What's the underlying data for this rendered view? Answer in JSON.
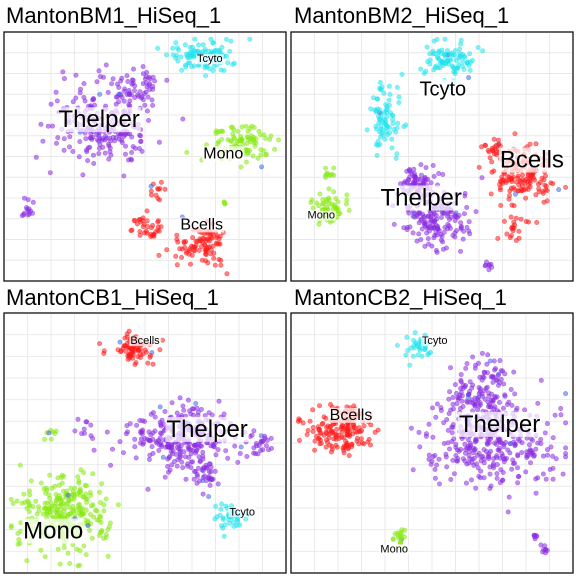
{
  "colors": {
    "Thelper": "#8a2be2",
    "Tcyto": "#1fe3ee",
    "Bcells": "#ff1a1a",
    "Mono": "#86ea11",
    "other": "#4169e1"
  },
  "chart_data": [
    {
      "type": "scatter",
      "title": "MantonBM1_HiSeq_1",
      "xlabel": "",
      "ylabel": "",
      "grid": true,
      "xlim": [
        0,
        100
      ],
      "ylim": [
        0,
        100
      ],
      "labels": [
        {
          "text": "Thelper",
          "x": 33,
          "y": 65,
          "size": "large"
        },
        {
          "text": "Tcyto",
          "x": 74,
          "y": 91,
          "size": "small"
        },
        {
          "text": "Mono",
          "x": 79,
          "y": 51,
          "size": "medium"
        },
        {
          "text": "Bcells",
          "x": 71,
          "y": 21,
          "size": "medium"
        }
      ],
      "clusters": [
        {
          "type": "Thelper",
          "cx": 34,
          "cy": 65,
          "sx": 10,
          "sy": 9,
          "n": 230
        },
        {
          "type": "Thelper",
          "cx": 47,
          "cy": 79,
          "sx": 5,
          "sy": 4,
          "n": 45
        },
        {
          "type": "Tcyto",
          "cx": 70,
          "cy": 92,
          "sx": 7,
          "sy": 3.5,
          "n": 95
        },
        {
          "type": "Mono",
          "cx": 85,
          "cy": 56,
          "sx": 6,
          "sy": 3.5,
          "n": 90
        },
        {
          "type": "Bcells",
          "cx": 71,
          "cy": 13,
          "sx": 5,
          "sy": 4.5,
          "n": 95
        },
        {
          "type": "Bcells",
          "cx": 51,
          "cy": 20,
          "sx": 3,
          "sy": 2.5,
          "n": 35
        },
        {
          "type": "Bcells",
          "cx": 54,
          "cy": 35,
          "sx": 2,
          "sy": 2,
          "n": 12
        },
        {
          "type": "Thelper",
          "cx": 7,
          "cy": 28,
          "sx": 1.2,
          "sy": 2.5,
          "n": 14
        },
        {
          "type": "Mono",
          "cx": 80,
          "cy": 31,
          "sx": 0.8,
          "sy": 0.8,
          "n": 4
        }
      ]
    },
    {
      "type": "scatter",
      "title": "MantonBM2_HiSeq_1",
      "xlabel": "",
      "ylabel": "",
      "grid": true,
      "xlim": [
        0,
        100
      ],
      "ylim": [
        0,
        100
      ],
      "labels": [
        {
          "text": "Tcyto",
          "x": 54,
          "y": 78,
          "size": "medium-large"
        },
        {
          "text": "Bcells",
          "x": 87,
          "y": 48,
          "size": "large"
        },
        {
          "text": "Thelper",
          "x": 46,
          "y": 32,
          "size": "large"
        },
        {
          "text": "Mono",
          "x": 9,
          "y": 25,
          "size": "small"
        }
      ],
      "clusters": [
        {
          "type": "Tcyto",
          "cx": 56,
          "cy": 91,
          "sx": 5,
          "sy": 3.5,
          "n": 90
        },
        {
          "type": "Tcyto",
          "cx": 33,
          "cy": 66,
          "sx": 3,
          "sy": 7,
          "n": 80
        },
        {
          "type": "Bcells",
          "cx": 83,
          "cy": 42,
          "sx": 6,
          "sy": 6,
          "n": 150
        },
        {
          "type": "Bcells",
          "cx": 73,
          "cy": 52,
          "sx": 2,
          "sy": 2,
          "n": 20
        },
        {
          "type": "Bcells",
          "cx": 80,
          "cy": 20,
          "sx": 3,
          "sy": 3,
          "n": 20
        },
        {
          "type": "Thelper",
          "cx": 52,
          "cy": 24,
          "sx": 6,
          "sy": 6,
          "n": 170
        },
        {
          "type": "Thelper",
          "cx": 44,
          "cy": 40,
          "sx": 3,
          "sy": 3,
          "n": 60
        },
        {
          "type": "Mono",
          "cx": 12,
          "cy": 28,
          "sx": 3,
          "sy": 4,
          "n": 55
        },
        {
          "type": "Mono",
          "cx": 12,
          "cy": 44,
          "sx": 1,
          "sy": 2,
          "n": 10
        },
        {
          "type": "Thelper",
          "cx": 71,
          "cy": 4,
          "sx": 0.8,
          "sy": 1.5,
          "n": 8
        }
      ]
    },
    {
      "type": "scatter",
      "title": "MantonCB1_HiSeq_1",
      "xlabel": "",
      "ylabel": "",
      "grid": true,
      "xlim": [
        0,
        100
      ],
      "ylim": [
        0,
        100
      ],
      "labels": [
        {
          "text": "Bcells",
          "x": 50,
          "y": 91,
          "size": "small"
        },
        {
          "text": "Thelper",
          "x": 73,
          "y": 55,
          "size": "large"
        },
        {
          "text": "Mono",
          "x": 16,
          "y": 14,
          "size": "large"
        },
        {
          "text": "Tcyto",
          "x": 86,
          "y": 22,
          "size": "small"
        }
      ],
      "clusters": [
        {
          "type": "Bcells",
          "cx": 46,
          "cy": 88,
          "sx": 4,
          "sy": 3,
          "n": 80
        },
        {
          "type": "Thelper",
          "cx": 63,
          "cy": 52,
          "sx": 9,
          "sy": 7,
          "n": 280
        },
        {
          "type": "Thelper",
          "cx": 92,
          "cy": 49,
          "sx": 3,
          "sy": 2,
          "n": 25
        },
        {
          "type": "Thelper",
          "cx": 72,
          "cy": 37,
          "sx": 3,
          "sy": 4,
          "n": 35
        },
        {
          "type": "Tcyto",
          "cx": 81,
          "cy": 21,
          "sx": 3,
          "sy": 2.5,
          "n": 45
        },
        {
          "type": "Mono",
          "cx": 20,
          "cy": 21,
          "sx": 8,
          "sy": 7,
          "n": 290
        },
        {
          "type": "Mono",
          "cx": 15,
          "cy": 54,
          "sx": 1.5,
          "sy": 1.5,
          "n": 8
        },
        {
          "type": "Thelper",
          "cx": 28,
          "cy": 55,
          "sx": 2,
          "sy": 2,
          "n": 10
        }
      ]
    },
    {
      "type": "scatter",
      "title": "MantonCB2_HiSeq_1",
      "xlabel": "",
      "ylabel": "",
      "grid": true,
      "xlim": [
        0,
        100
      ],
      "ylim": [
        0,
        100
      ],
      "labels": [
        {
          "text": "Tcyto",
          "x": 51,
          "y": 91,
          "size": "small"
        },
        {
          "text": "Bcells",
          "x": 20,
          "y": 61,
          "size": "medium"
        },
        {
          "text": "Thelper",
          "x": 75,
          "y": 57,
          "size": "large"
        },
        {
          "text": "Mono",
          "x": 36,
          "y": 7,
          "size": "small"
        }
      ],
      "clusters": [
        {
          "type": "Tcyto",
          "cx": 45,
          "cy": 89,
          "sx": 3,
          "sy": 2.5,
          "n": 35
        },
        {
          "type": "Bcells",
          "cx": 16,
          "cy": 56,
          "sx": 6,
          "sy": 5,
          "n": 170
        },
        {
          "type": "Thelper",
          "cx": 68,
          "cy": 68,
          "sx": 7,
          "sy": 8,
          "n": 170
        },
        {
          "type": "Thelper",
          "cx": 73,
          "cy": 48,
          "sx": 12,
          "sy": 8,
          "n": 280
        },
        {
          "type": "Mono",
          "cx": 38,
          "cy": 12,
          "sx": 1.2,
          "sy": 2,
          "n": 18
        },
        {
          "type": "Thelper",
          "cx": 92,
          "cy": 7,
          "sx": 0.7,
          "sy": 2,
          "n": 8
        },
        {
          "type": "Thelper",
          "cx": 88,
          "cy": 12,
          "sx": 0.7,
          "sy": 1,
          "n": 6
        }
      ]
    }
  ]
}
